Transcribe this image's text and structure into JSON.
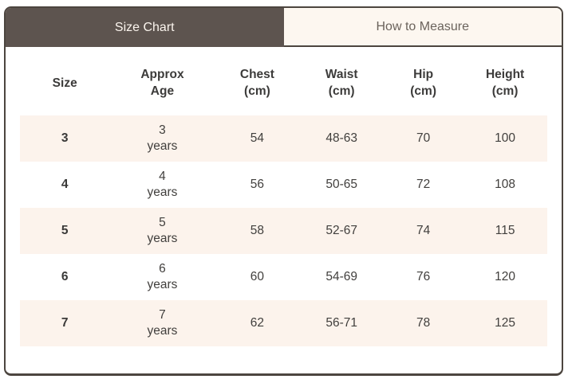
{
  "widget": {
    "name": "size-chart-widget"
  },
  "tabs": [
    {
      "id": "size-chart",
      "label": "Size Chart",
      "active": true
    },
    {
      "id": "how-to-measure",
      "label": "How to Measure",
      "active": false
    }
  ],
  "colors": {
    "active_tab_bg": "#5d544f",
    "active_tab_text": "#fbf5ee",
    "inactive_tab_bg": "#fdf7f0",
    "inactive_tab_text": "#6b635c",
    "border": "#4c453f",
    "row_stripe_bg": "#fcf3ec",
    "header_text": "#3c3b3a",
    "cell_text": "#413f3d"
  },
  "table": {
    "headers": [
      [
        "Size"
      ],
      [
        "Approx",
        "Age"
      ],
      [
        "Chest",
        "(cm)"
      ],
      [
        "Waist",
        "(cm)"
      ],
      [
        "Hip",
        "(cm)"
      ],
      [
        "Height",
        "(cm)"
      ]
    ],
    "rows": [
      {
        "size": "3",
        "age_value": "3",
        "age_unit": "years",
        "chest": "54",
        "waist": "48-63",
        "hip": "70",
        "height": "100"
      },
      {
        "size": "4",
        "age_value": "4",
        "age_unit": "years",
        "chest": "56",
        "waist": "50-65",
        "hip": "72",
        "height": "108"
      },
      {
        "size": "5",
        "age_value": "5",
        "age_unit": "years",
        "chest": "58",
        "waist": "52-67",
        "hip": "74",
        "height": "115"
      },
      {
        "size": "6",
        "age_value": "6",
        "age_unit": "years",
        "chest": "60",
        "waist": "54-69",
        "hip": "76",
        "height": "120"
      },
      {
        "size": "7",
        "age_value": "7",
        "age_unit": "years",
        "chest": "62",
        "waist": "56-71",
        "hip": "78",
        "height": "125"
      }
    ]
  }
}
